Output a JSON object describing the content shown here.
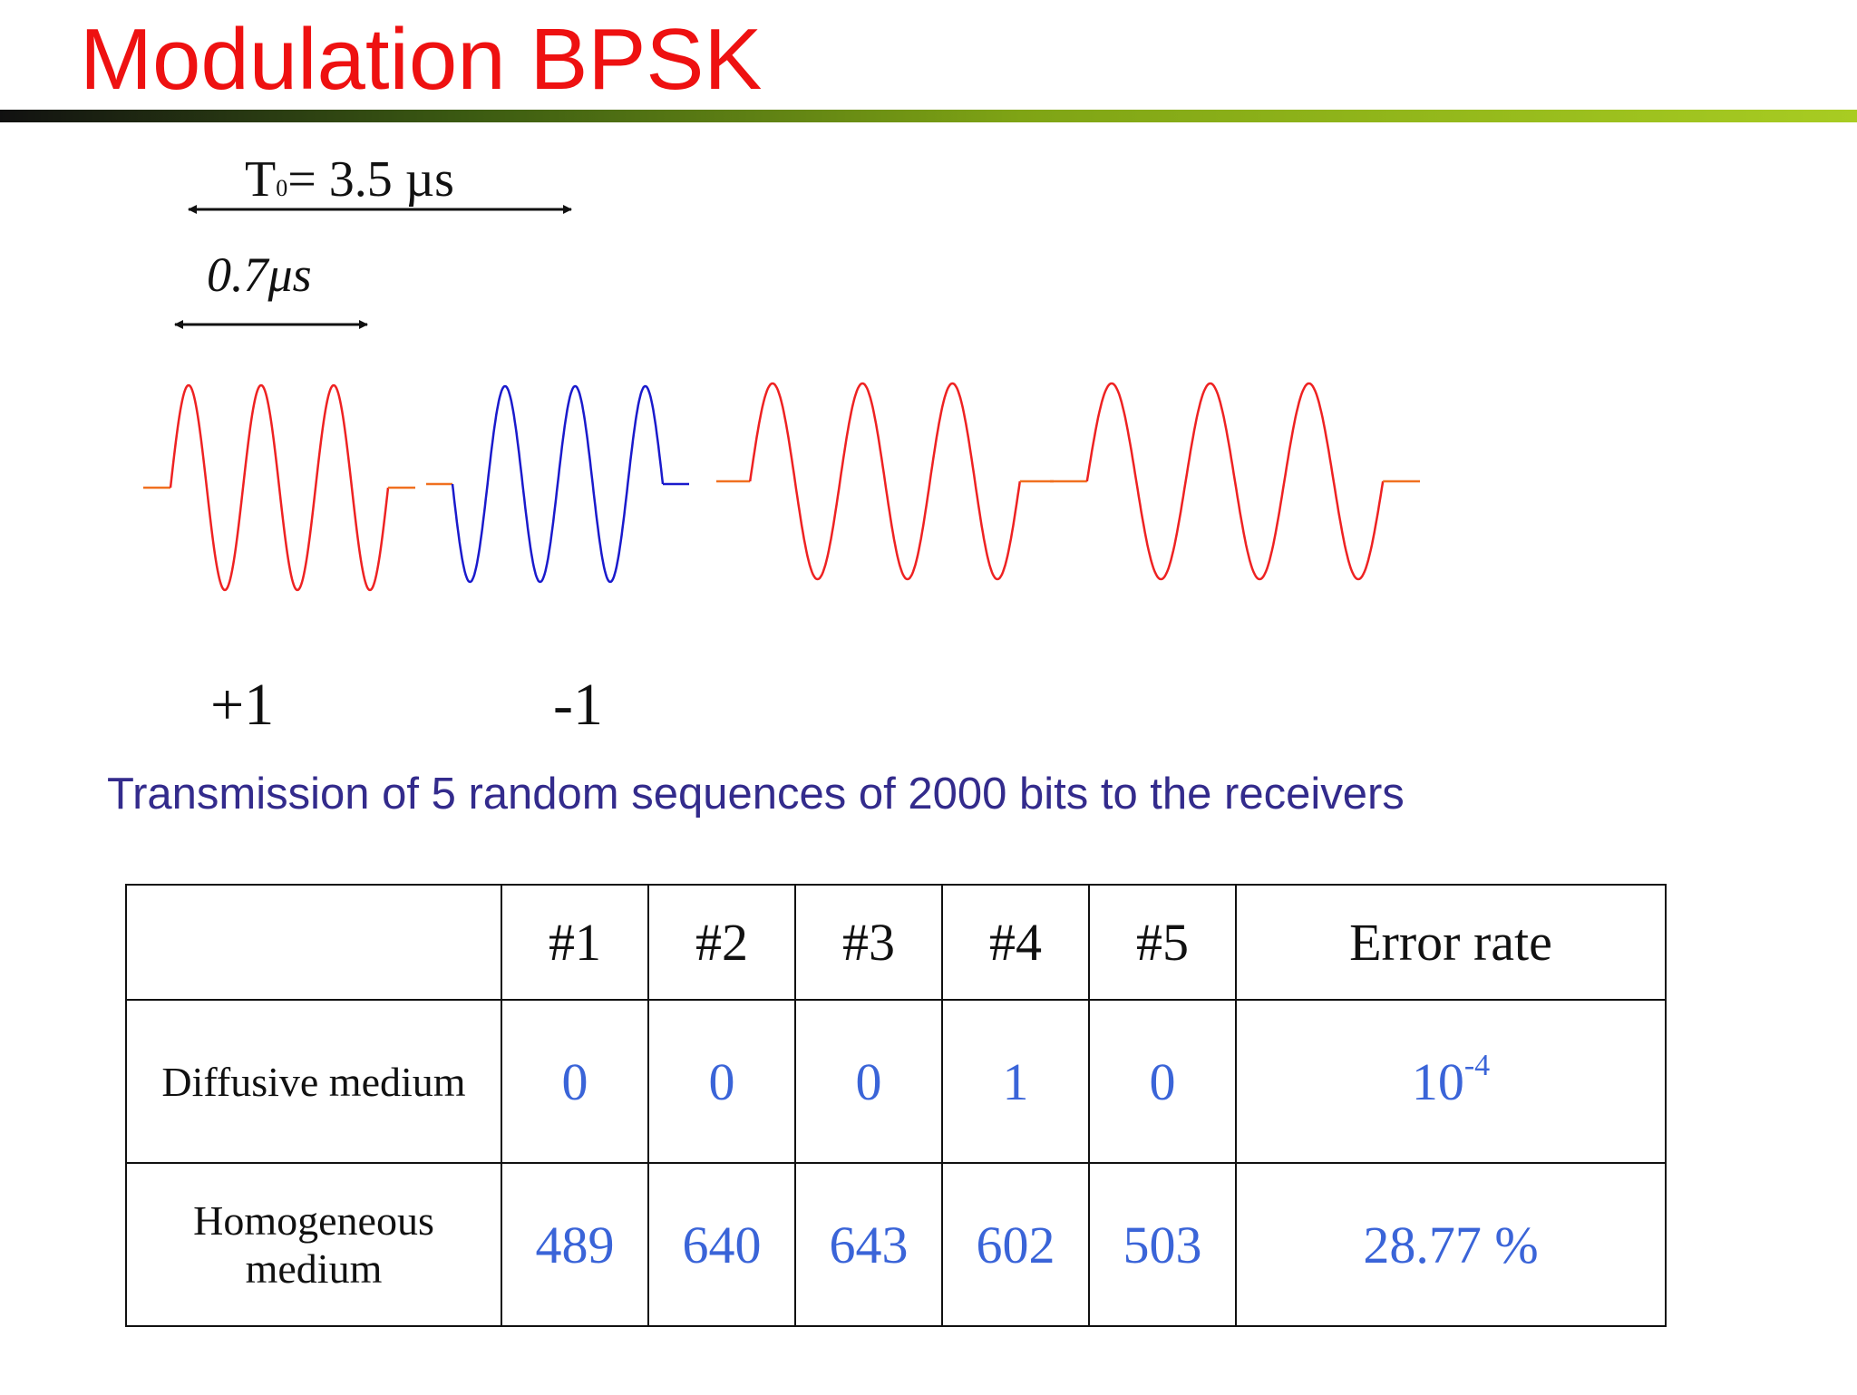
{
  "title": "Modulation BPSK",
  "period_label": {
    "symbol": "T",
    "subscript": "0",
    "text": "= 3.5 µs"
  },
  "bit_duration_label": "0.7μs",
  "symbol_labels": {
    "plus": "+1",
    "minus": "-1"
  },
  "subtitle": "Transmission of 5 random sequences of 2000 bits to the receivers",
  "waveform": {
    "bits": [
      1,
      -1,
      1,
      1
    ],
    "colors": {
      "positive": "#ee2222",
      "negative": "#1a1acc",
      "baseline": "#f07020"
    }
  },
  "table": {
    "headers": [
      "",
      "#1",
      "#2",
      "#3",
      "#4",
      "#5",
      "Error rate"
    ],
    "rows": [
      {
        "label_lines": [
          "Diffusive medium"
        ],
        "values": [
          "0",
          "0",
          "0",
          "1",
          "0"
        ],
        "rate_base": "10",
        "rate_exp": "-4"
      },
      {
        "label_lines": [
          "Homogeneous",
          "medium"
        ],
        "values": [
          "489",
          "640",
          "643",
          "602",
          "503"
        ],
        "rate_base": "28.77 %",
        "rate_exp": ""
      }
    ]
  }
}
